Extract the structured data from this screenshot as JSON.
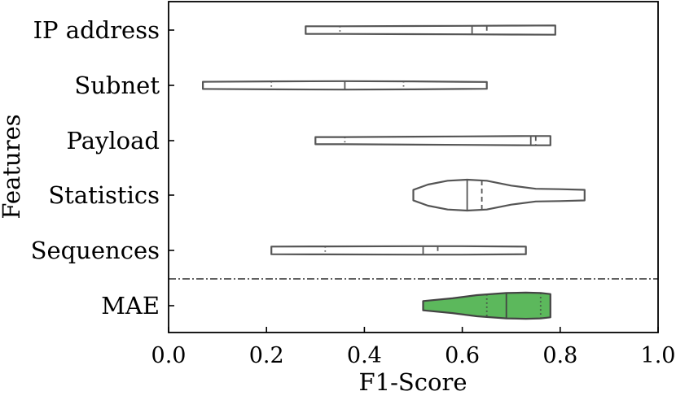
{
  "chart_data": {
    "type": "violin",
    "orientation": "horizontal",
    "xlabel": "F1-Score",
    "ylabel": "Features",
    "xlim": [
      0.0,
      1.0
    ],
    "xticks": [
      "0.0",
      "0.2",
      "0.4",
      "0.6",
      "0.8",
      "1.0"
    ],
    "grid": false,
    "legend": "none",
    "separator": {
      "style": "dash-dot",
      "between": [
        "Sequences",
        "MAE"
      ]
    },
    "series": [
      {
        "category": "IP address",
        "fill": "#ffffff",
        "stroke": "#555555",
        "min": 0.28,
        "q1": 0.35,
        "median": 0.62,
        "mean": 0.65,
        "max": 0.79,
        "profile": [
          [
            0.28,
            0.18
          ],
          [
            0.35,
            0.18
          ],
          [
            0.6,
            0.2
          ],
          [
            0.7,
            0.21
          ],
          [
            0.79,
            0.22
          ]
        ]
      },
      {
        "category": "Subnet",
        "fill": "#ffffff",
        "stroke": "#555555",
        "min": 0.07,
        "q1": 0.21,
        "median": 0.36,
        "q3": 0.48,
        "max": 0.65,
        "profile": [
          [
            0.07,
            0.17
          ],
          [
            0.21,
            0.19
          ],
          [
            0.36,
            0.2
          ],
          [
            0.5,
            0.19
          ],
          [
            0.6,
            0.17
          ],
          [
            0.65,
            0.16
          ]
        ]
      },
      {
        "category": "Payload",
        "fill": "#ffffff",
        "stroke": "#555555",
        "min": 0.3,
        "q1": 0.36,
        "median": 0.74,
        "mean": 0.75,
        "max": 0.78,
        "profile": [
          [
            0.3,
            0.17
          ],
          [
            0.36,
            0.17
          ],
          [
            0.6,
            0.2
          ],
          [
            0.74,
            0.22
          ],
          [
            0.78,
            0.22
          ]
        ]
      },
      {
        "category": "Statistics",
        "fill": "#ffffff",
        "stroke": "#555555",
        "min": 0.5,
        "median": 0.61,
        "mean": 0.64,
        "max": 0.85,
        "profile": [
          [
            0.5,
            0.25
          ],
          [
            0.53,
            0.5
          ],
          [
            0.57,
            0.68
          ],
          [
            0.61,
            0.73
          ],
          [
            0.65,
            0.68
          ],
          [
            0.7,
            0.45
          ],
          [
            0.75,
            0.3
          ],
          [
            0.8,
            0.28
          ],
          [
            0.85,
            0.25
          ]
        ]
      },
      {
        "category": "Sequences",
        "fill": "#ffffff",
        "stroke": "#555555",
        "min": 0.21,
        "q1": 0.32,
        "median": 0.52,
        "mean": 0.55,
        "max": 0.73,
        "profile": [
          [
            0.21,
            0.18
          ],
          [
            0.32,
            0.19
          ],
          [
            0.52,
            0.2
          ],
          [
            0.6,
            0.2
          ],
          [
            0.73,
            0.18
          ]
        ]
      },
      {
        "category": "MAE",
        "fill": "#5cb85c",
        "stroke": "#444444",
        "min": 0.52,
        "q1": 0.65,
        "median": 0.69,
        "q3": 0.76,
        "max": 0.78,
        "profile": [
          [
            0.52,
            0.22
          ],
          [
            0.58,
            0.35
          ],
          [
            0.63,
            0.5
          ],
          [
            0.69,
            0.6
          ],
          [
            0.73,
            0.62
          ],
          [
            0.76,
            0.6
          ],
          [
            0.78,
            0.55
          ]
        ]
      }
    ]
  }
}
